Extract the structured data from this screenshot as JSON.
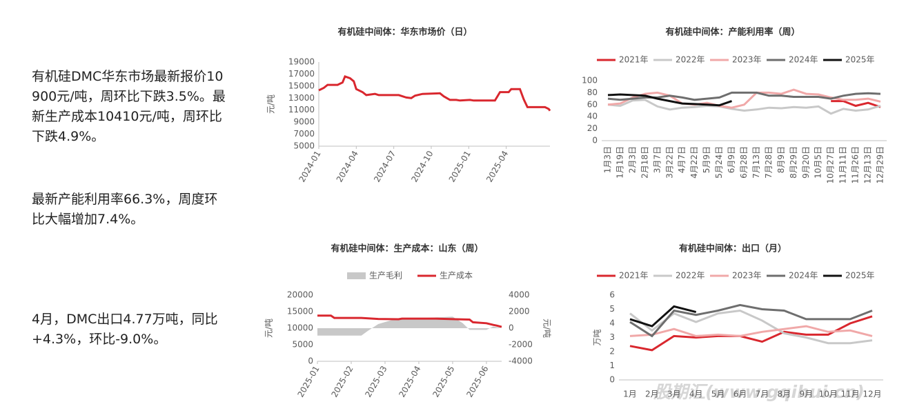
{
  "texts": [
    "有机硅DMC华东市场最新报价10900元/吨，周环比下跌3.5%。最新生产成本10410元/吨，周环比下跌4.9%。",
    "最新产能利用率66.3%，周度环比大幅增加7.4%。",
    "4月，DMC出口4.77万吨，同比+4.3%，环比-9.0%。"
  ],
  "watermark": "股期汇(www.gqihui.cn)",
  "chart_data": [
    {
      "type": "line",
      "title": "有机硅中间体：华东市场价（日）",
      "ylabel": "元/吨",
      "ylim": [
        5000,
        19000
      ],
      "yticks": [
        5000,
        7000,
        9000,
        11000,
        13000,
        15000,
        17000,
        19000
      ],
      "xlim": [
        0,
        18.5
      ],
      "xticks": [
        {
          "value": 0,
          "label": "2024-01"
        },
        {
          "value": 3,
          "label": "2024-04"
        },
        {
          "value": 6,
          "label": "2024-07"
        },
        {
          "value": 9,
          "label": "2024-10"
        },
        {
          "value": 12,
          "label": "2025-01"
        },
        {
          "value": 15,
          "label": "2025-04"
        }
      ],
      "series": [
        {
          "color": "#d9272e",
          "x": [
            0,
            0.4,
            0.7,
            1.5,
            1.9,
            2.1,
            2.5,
            2.8,
            3.0,
            3.5,
            3.8,
            4.5,
            4.8,
            6.4,
            7.0,
            7.4,
            7.7,
            8.3,
            9.7,
            10.0,
            10.5,
            11.0,
            11.3,
            12.1,
            12.4,
            14.1,
            14.5,
            15.2,
            15.4,
            16.1,
            16.4,
            16.7,
            18.1,
            18.4,
            18.5
          ],
          "values": [
            14300,
            14700,
            15200,
            15200,
            15600,
            16600,
            16300,
            15800,
            14500,
            14000,
            13500,
            13700,
            13500,
            13500,
            13100,
            13000,
            13400,
            13700,
            13800,
            13300,
            12700,
            12700,
            12600,
            12700,
            12600,
            12600,
            14000,
            14000,
            14500,
            14500,
            12800,
            11500,
            11500,
            11200,
            10900
          ]
        }
      ]
    },
    {
      "type": "line",
      "title": "有机硅中间体：产能利用率（周）",
      "legend": "top",
      "ylim": [
        0,
        100
      ],
      "yticks": [
        0,
        20,
        40,
        60,
        80,
        100
      ],
      "categories": [
        "1月3日",
        "1月19日",
        "2月3日",
        "2月18日",
        "3月7日",
        "3月22日",
        "4月7日",
        "4月22日",
        "5月9日",
        "5月24日",
        "6月9日",
        "6月28日",
        "7月13日",
        "7月28日",
        "8月9日",
        "8月29日",
        "9月20日",
        "10月5日",
        "10月27日",
        "11月11日",
        "11月26日",
        "12月13日",
        "12月29日"
      ],
      "series": [
        {
          "name": "2021年",
          "color": "#d9272e",
          "values": [
            null,
            null,
            null,
            null,
            null,
            null,
            null,
            null,
            null,
            null,
            null,
            null,
            null,
            null,
            null,
            null,
            null,
            null,
            66,
            66,
            58,
            63,
            56
          ]
        },
        {
          "name": "2022年",
          "color": "#c8c8c8",
          "values": [
            60,
            58,
            67,
            68,
            57,
            52,
            55,
            56,
            58,
            57,
            53,
            50,
            52,
            55,
            54,
            56,
            55,
            57,
            45,
            53,
            50,
            52,
            58
          ]
        },
        {
          "name": "2023年",
          "color": "#f0a8a8",
          "values": [
            60,
            62,
            72,
            78,
            80,
            75,
            62,
            60,
            63,
            58,
            55,
            60,
            80,
            80,
            78,
            85,
            78,
            77,
            72,
            68,
            68,
            70,
            65
          ]
        },
        {
          "name": "2024年",
          "color": "#6e6e6e",
          "values": [
            70,
            68,
            70,
            72,
            72,
            75,
            72,
            68,
            70,
            72,
            80,
            80,
            80,
            75,
            75,
            73,
            73,
            73,
            70,
            75,
            78,
            79,
            78
          ]
        },
        {
          "name": "2025年",
          "color": "#111111",
          "values": [
            76,
            77,
            76,
            75,
            70,
            66,
            62,
            61,
            60,
            59,
            66,
            null,
            null,
            null,
            null,
            null,
            null,
            null,
            null,
            null,
            null,
            null,
            null
          ]
        }
      ]
    },
    {
      "type": "combo",
      "title": "有机硅中间体：生产成本：山东（周）",
      "legend": "top",
      "ylabel": "元/吨",
      "y2label": "元/吨",
      "ylim": [
        0,
        20000
      ],
      "yticks": [
        0,
        5000,
        10000,
        15000,
        20000
      ],
      "y2lim": [
        -4000,
        4000
      ],
      "y2ticks": [
        -4000,
        -2000,
        0,
        2000,
        4000
      ],
      "xlim": [
        0,
        5.45
      ],
      "xticks": [
        {
          "value": 0,
          "label": "2025-01"
        },
        {
          "value": 1,
          "label": "2025-02"
        },
        {
          "value": 2,
          "label": "2025-03"
        },
        {
          "value": 3,
          "label": "2025-04"
        },
        {
          "value": 4,
          "label": "2025-05"
        },
        {
          "value": 5,
          "label": "2025-06"
        }
      ],
      "series": [
        {
          "name": "生产毛利",
          "color": "#c8c8c8",
          "style": "area",
          "axis": "y2",
          "x": [
            0,
            0.5,
            1.3,
            1.5,
            1.8,
            2.3,
            3.0,
            3.5,
            4.0,
            4.3,
            4.5,
            5.0,
            5.2,
            5.45
          ],
          "values": [
            -900,
            -900,
            -900,
            -300,
            500,
            1100,
            1200,
            1300,
            1400,
            600,
            -200,
            -200,
            200,
            0
          ]
        },
        {
          "name": "生产成本",
          "color": "#d9272e",
          "style": "line",
          "x": [
            0,
            0.4,
            0.5,
            1.3,
            1.8,
            2.4,
            2.5,
            3.5,
            4.1,
            4.5,
            4.6,
            5.0,
            5.2,
            5.3,
            5.45
          ],
          "values": [
            13800,
            13800,
            13100,
            13100,
            12800,
            12700,
            12900,
            12900,
            12700,
            12600,
            11800,
            11500,
            11000,
            10800,
            10400
          ]
        }
      ]
    },
    {
      "type": "line",
      "title": "有机硅中间体：出口（月）",
      "legend": "top",
      "ylabel": "万吨",
      "ylim": [
        0,
        6
      ],
      "yticks": [
        0,
        1,
        2,
        3,
        4,
        5,
        6
      ],
      "categories": [
        "1月",
        "2月",
        "3月",
        "4月",
        "5月",
        "6月",
        "7月",
        "8月",
        "9月",
        "10月",
        "11月",
        "12月"
      ],
      "series": [
        {
          "name": "2021年",
          "color": "#d9272e",
          "values": [
            2.4,
            2.1,
            3.1,
            3.0,
            3.1,
            3.1,
            2.7,
            3.4,
            3.2,
            3.2,
            4.0,
            4.5
          ]
        },
        {
          "name": "2022年",
          "color": "#c8c8c8",
          "values": [
            4.7,
            3.5,
            4.7,
            4.1,
            4.7,
            4.9,
            4.2,
            3.3,
            3.0,
            2.6,
            2.6,
            2.8
          ]
        },
        {
          "name": "2023年",
          "color": "#f0a8a8",
          "values": [
            3.1,
            3.2,
            3.6,
            3.1,
            3.2,
            3.1,
            3.4,
            3.6,
            3.8,
            3.4,
            3.5,
            3.1
          ]
        },
        {
          "name": "2024年",
          "color": "#6e6e6e",
          "values": [
            4.1,
            3.1,
            4.9,
            4.6,
            4.9,
            5.3,
            5.0,
            4.9,
            4.3,
            4.3,
            4.3,
            4.9
          ]
        },
        {
          "name": "2025年",
          "color": "#111111",
          "values": [
            4.3,
            3.8,
            5.2,
            4.8,
            null,
            null,
            null,
            null,
            null,
            null,
            null,
            null
          ]
        }
      ]
    }
  ]
}
